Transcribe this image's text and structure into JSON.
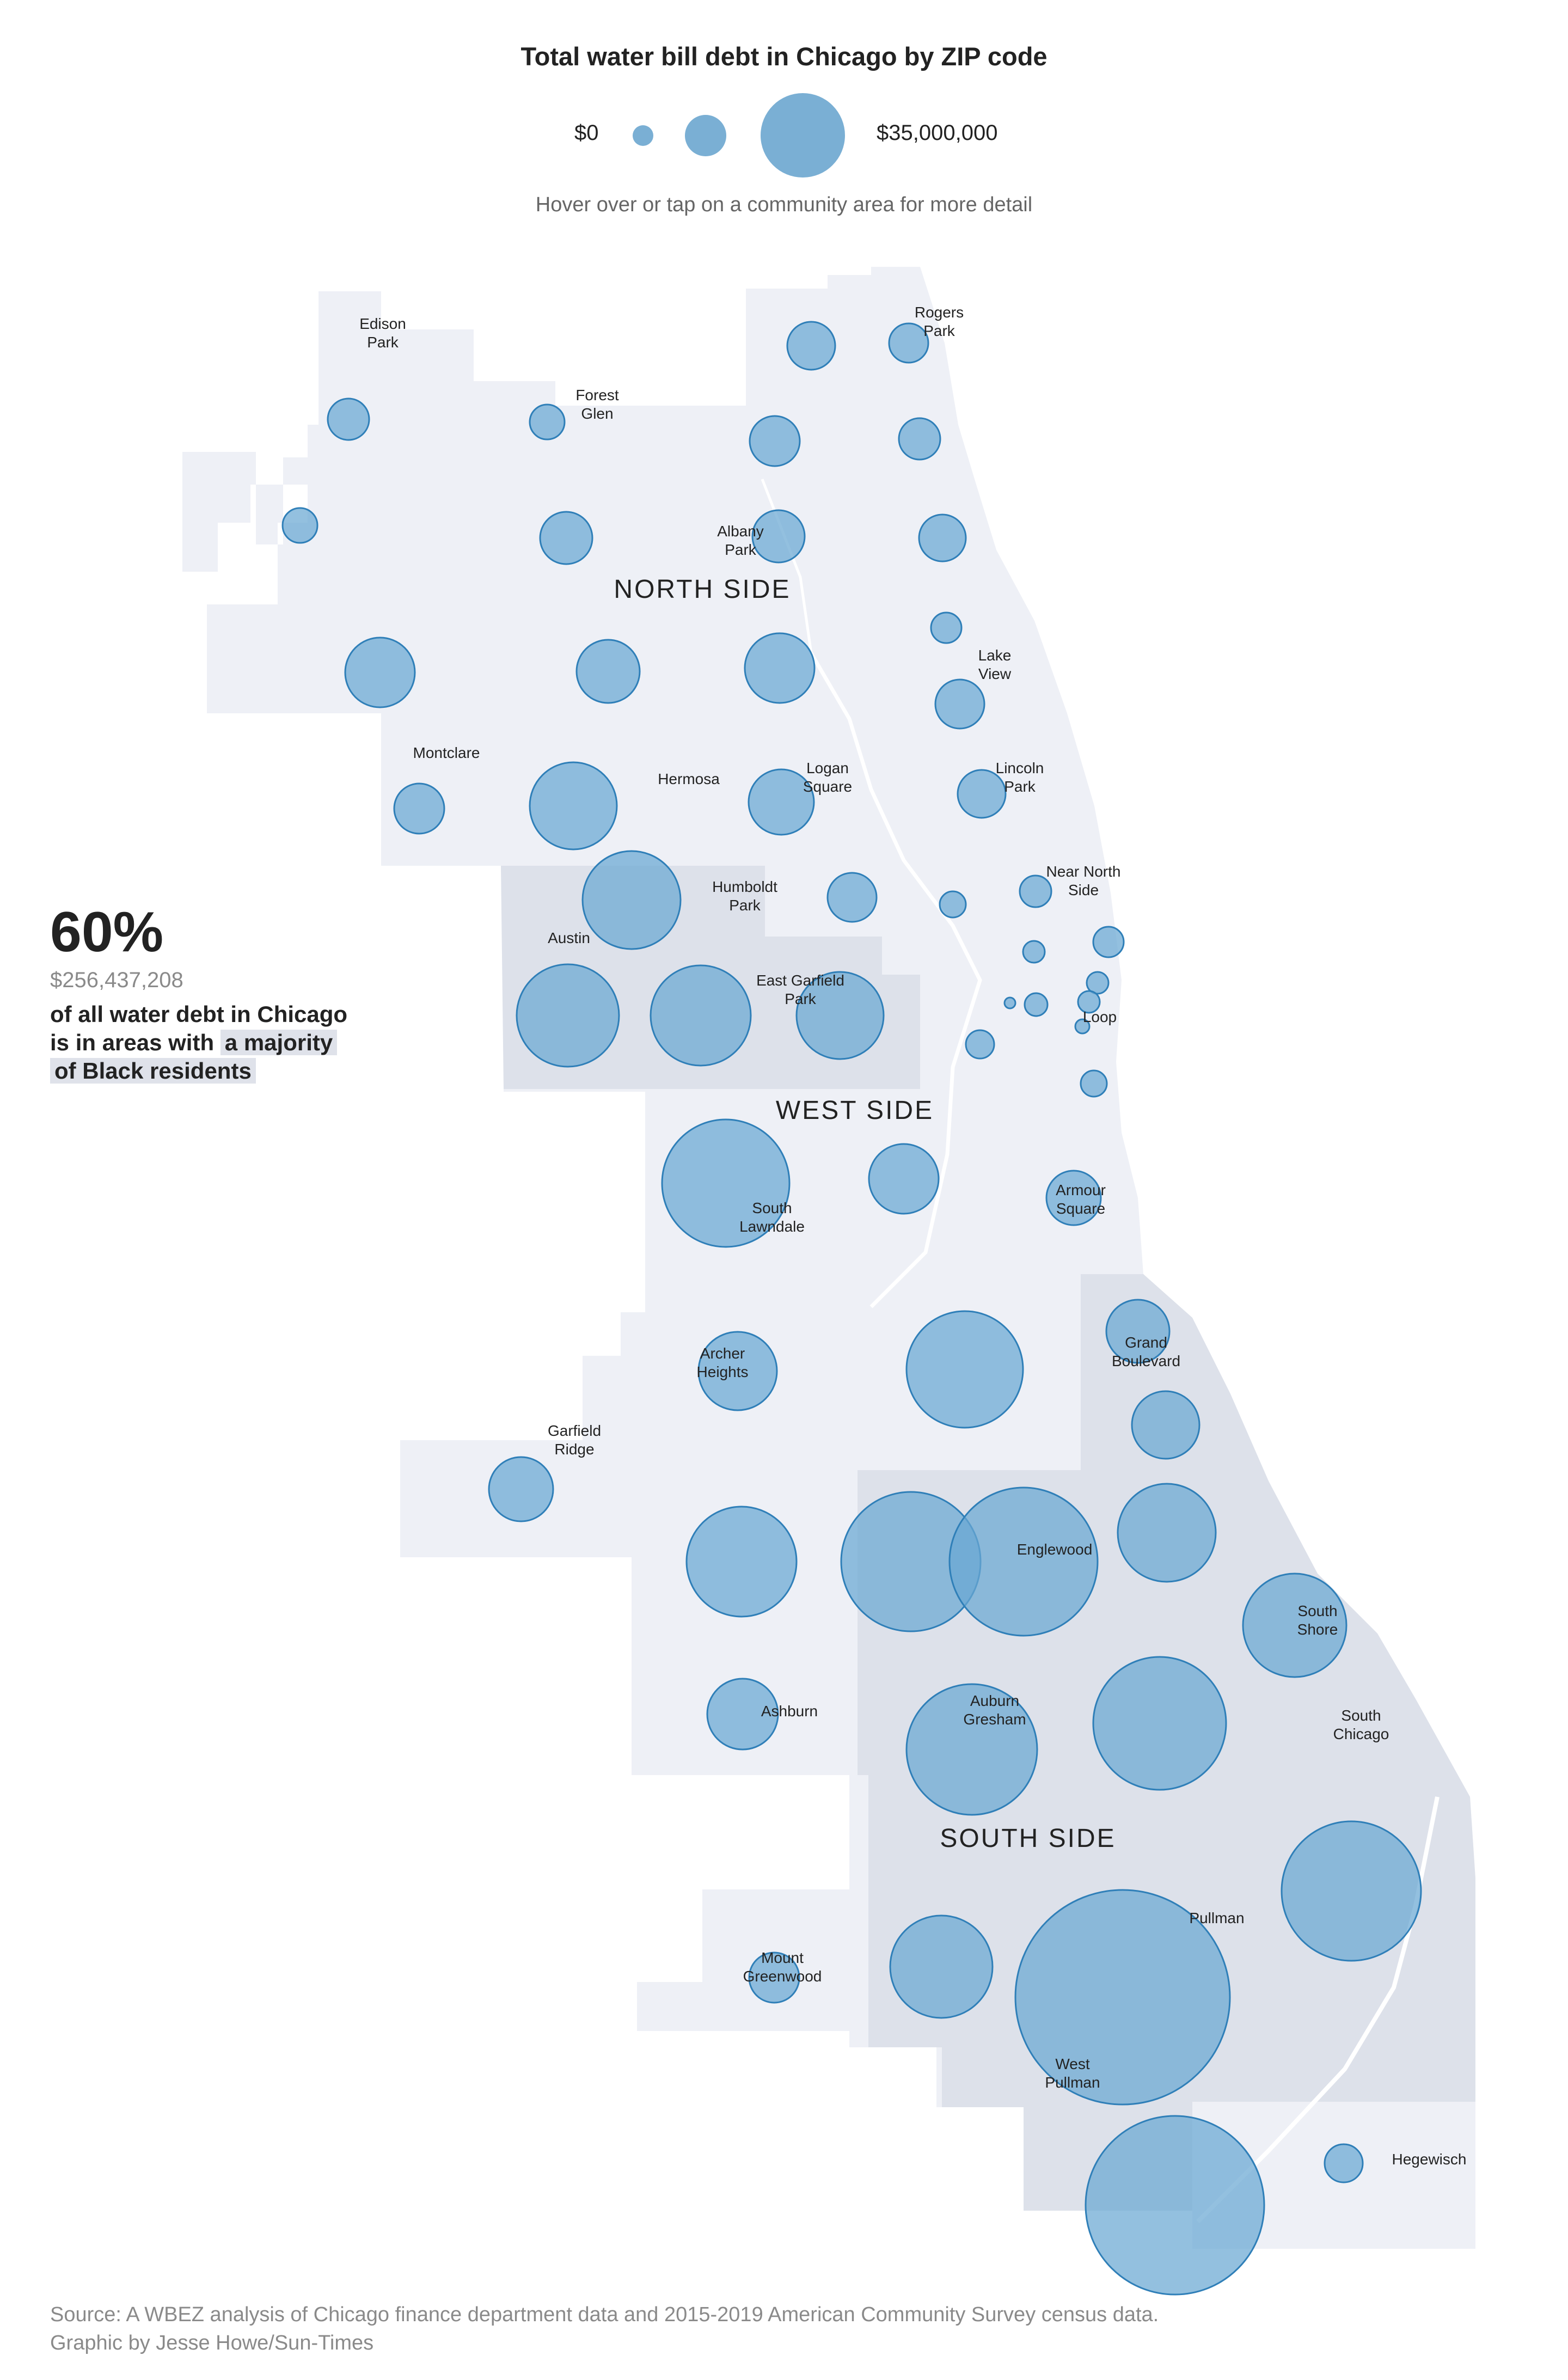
{
  "title": "Total water bill debt in Chicago by ZIP code",
  "legend": {
    "low_label": "$0",
    "high_label": "$35,000,000"
  },
  "hint": "Hover over or tap on a community area for more detail",
  "callout": {
    "percent": "60%",
    "amount": "$256,437,208",
    "line1": "of all water debt in Chicago",
    "line2_prefix": "is in areas with",
    "line2_highlight": "a majority",
    "line3_highlight": "of Black residents"
  },
  "regions": [
    "NORTH SIDE",
    "WEST SIDE",
    "SOUTH SIDE"
  ],
  "community_labels": [
    "Edison Park",
    "Rogers Park",
    "Forest Glen",
    "Albany Park",
    "Lake View",
    "Montclare",
    "Hermosa",
    "Logan Square",
    "Lincoln Park",
    "Humboldt Park",
    "Near North Side",
    "Austin",
    "East Garfield Park",
    "Loop",
    "South Lawndale",
    "Armour Square",
    "Archer Heights",
    "Grand Boulevard",
    "Garfield Ridge",
    "Englewood",
    "South Shore",
    "Ashburn",
    "Auburn Gresham",
    "South Chicago",
    "Pullman",
    "Mount Greenwood",
    "West Pullman",
    "Hegewisch"
  ],
  "colors": {
    "bubble_fill": "#6aa7d2",
    "bubble_stroke": "#2f7fb8",
    "land": "#eef0f6",
    "majority_black": "#dde1ea"
  },
  "footer": {
    "source": "Source: A WBEZ analysis of Chicago finance department data and 2015-2019 American Community Survey census data.",
    "credit": "Graphic by Jesse Howe/Sun-Times"
  }
}
